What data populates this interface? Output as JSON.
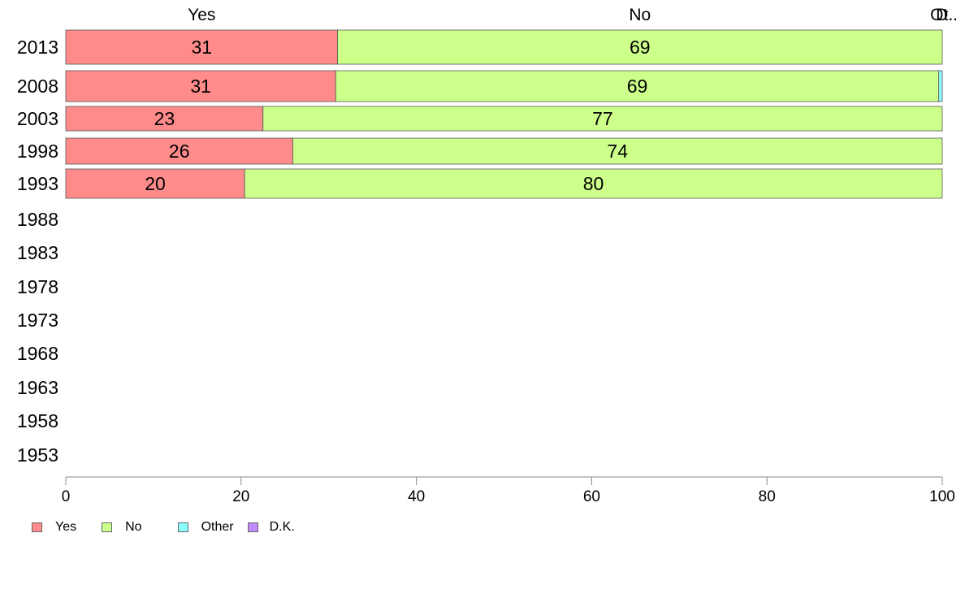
{
  "chart_data": {
    "type": "bar",
    "orientation": "horizontal",
    "stacked": true,
    "categories": [
      "2013",
      "2008",
      "2003",
      "1998",
      "1993",
      "1988",
      "1983",
      "1978",
      "1973",
      "1968",
      "1963",
      "1958",
      "1953"
    ],
    "series": [
      {
        "name": "Yes",
        "color": "#ff8b8b",
        "values": [
          31.0,
          30.8,
          22.5,
          25.9,
          20.4,
          null,
          null,
          null,
          null,
          null,
          null,
          null,
          null
        ],
        "labels": [
          "31",
          "31",
          "23",
          "26",
          "20",
          "",
          "",
          "",
          "",
          "",
          "",
          "",
          ""
        ]
      },
      {
        "name": "No",
        "color": "#cdff8b",
        "values": [
          69.0,
          68.8,
          77.5,
          74.1,
          79.6,
          null,
          null,
          null,
          null,
          null,
          null,
          null,
          null
        ],
        "labels": [
          "69",
          "69",
          "77",
          "74",
          "80",
          "",
          "",
          "",
          "",
          "",
          "",
          "",
          ""
        ]
      },
      {
        "name": "Other",
        "color": "#8bffff",
        "values": [
          0,
          0.4,
          0,
          0,
          0,
          null,
          null,
          null,
          null,
          null,
          null,
          null,
          null
        ],
        "labels": [
          "",
          "",
          "",
          "",
          "",
          "",
          "",
          "",
          "",
          "",
          "",
          "",
          ""
        ]
      },
      {
        "name": "D.K.",
        "color": "#c08bff",
        "values": [
          0,
          0,
          0,
          0,
          0,
          null,
          null,
          null,
          null,
          null,
          null,
          null,
          null
        ],
        "labels": [
          "",
          "",
          "",
          "",
          "",
          "",
          "",
          "",
          "",
          "",
          "",
          "",
          ""
        ]
      }
    ],
    "top_labels": [
      {
        "text": "Yes",
        "at": 15.5
      },
      {
        "text": "No",
        "at": 65.5
      },
      {
        "text": "Ot..",
        "at": 100
      },
      {
        "text": "D..",
        "at": 100
      }
    ],
    "xlim": [
      0,
      100
    ],
    "xticks": [
      0,
      20,
      40,
      60,
      80,
      100
    ],
    "grid": false,
    "legend_position": "bottom-left"
  }
}
